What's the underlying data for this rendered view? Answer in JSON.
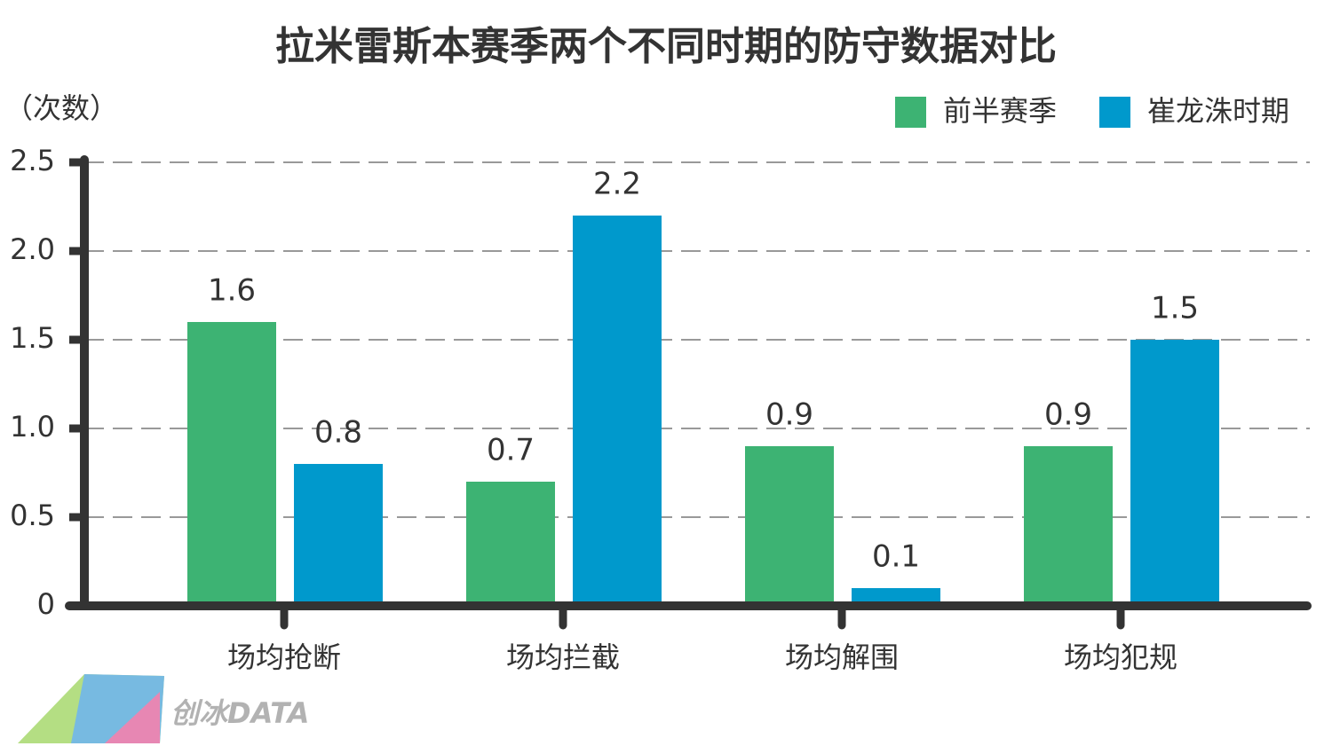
{
  "chart_data": {
    "type": "bar",
    "title": "拉米雷斯本赛季两个不同时期的防守数据对比",
    "y_label": "（次数）",
    "categories": [
      "场均抢断",
      "场均拦截",
      "场均解围",
      "场均犯规"
    ],
    "series": [
      {
        "name": "前半赛季",
        "color": "#3db373",
        "values": [
          1.6,
          0.7,
          0.9,
          0.9
        ]
      },
      {
        "name": "崔龙洙时期",
        "color": "#0099cc",
        "values": [
          0.8,
          2.2,
          0.1,
          1.5
        ]
      }
    ],
    "ylim": [
      0,
      2.5
    ],
    "yticks": [
      0,
      0.5,
      {
        "value": 1,
        "label": "1.0"
      },
      1.5,
      {
        "value": 2,
        "label": "2.0"
      },
      2.5
    ],
    "grid": true,
    "legend": "top-right",
    "watermark": "创冰DATA"
  }
}
